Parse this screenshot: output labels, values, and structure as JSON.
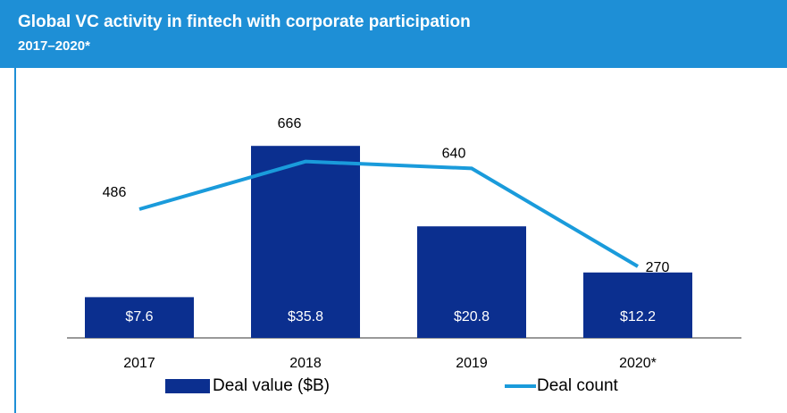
{
  "chart_data": {
    "type": "bar-line",
    "title": "Global VC activity in fintech with corporate participation",
    "subtitle": "2017–2020*",
    "categories": [
      "2017",
      "2018",
      "2019",
      "2020*"
    ],
    "series": [
      {
        "name": "Deal value ($B)",
        "type": "bar",
        "color": "#0b2f8f",
        "values": [
          7.6,
          35.8,
          20.8,
          12.2
        ],
        "value_labels": [
          "$7.6",
          "$35.8",
          "$20.8",
          "$12.2"
        ]
      },
      {
        "name": "Deal count",
        "type": "line",
        "axis": "y2",
        "color": "#1a9bdb",
        "values": [
          486,
          666,
          640,
          270
        ]
      }
    ],
    "ylim": [
      0,
      40
    ],
    "y2lim": [
      0,
      810
    ]
  }
}
